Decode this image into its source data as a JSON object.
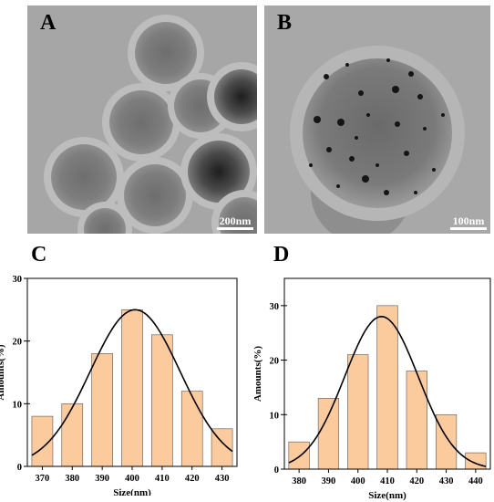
{
  "panels": {
    "A": {
      "label": "A",
      "scale_bar": "200nm"
    },
    "B": {
      "label": "B",
      "scale_bar": "100nm"
    }
  },
  "chart_data": [
    {
      "panel": "C",
      "type": "bar",
      "categories": [
        "370",
        "380",
        "390",
        "400",
        "410",
        "420",
        "430"
      ],
      "values": [
        8,
        10,
        18,
        25,
        21,
        12,
        6
      ],
      "fit_curve": {
        "type": "gaussian",
        "center": 401,
        "peak": 25,
        "sigma": 15
      },
      "xlabel": "Size(nm)",
      "ylabel": "Amounts(%)",
      "ylim": [
        0,
        30
      ],
      "yticks": [
        "0",
        "10",
        "20",
        "30"
      ],
      "bar_color": "#fbcb9e"
    },
    {
      "panel": "D",
      "type": "bar",
      "categories": [
        "380",
        "390",
        "400",
        "410",
        "420",
        "430",
        "440"
      ],
      "values": [
        5,
        13,
        21,
        30,
        18,
        10,
        3
      ],
      "fit_curve": {
        "type": "gaussian",
        "center": 408,
        "peak": 28,
        "sigma": 12.5
      },
      "xlabel": "Size(nm)",
      "ylabel": "Amounts(%)",
      "ylim": [
        0,
        35
      ],
      "yticks": [
        "0",
        "10",
        "20",
        "30"
      ],
      "bar_color": "#fbcb9e"
    }
  ]
}
